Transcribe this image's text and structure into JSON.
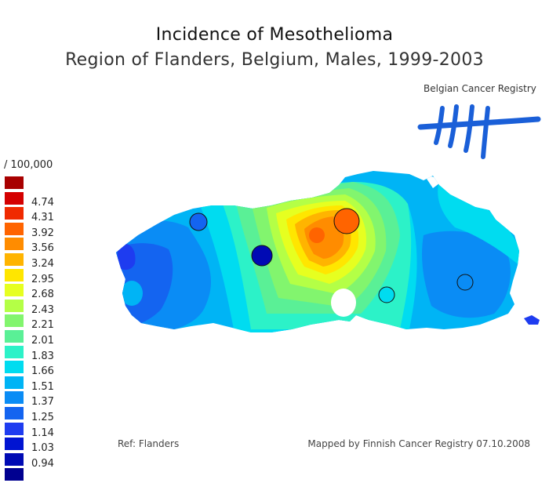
{
  "title": "Incidence of Mesothelioma",
  "subtitle": "Region of Flanders, Belgium, Males, 1999-2003",
  "logo": {
    "text": "Belgian Cancer Registry",
    "color": "#1a5fd8"
  },
  "legend": {
    "unit": "/ 100,000",
    "items": [
      {
        "label": "",
        "color": "#a80000"
      },
      {
        "label": "4.74",
        "color": "#d40000"
      },
      {
        "label": "4.31",
        "color": "#f02a00"
      },
      {
        "label": "3.92",
        "color": "#ff6400"
      },
      {
        "label": "3.56",
        "color": "#ff8c00"
      },
      {
        "label": "3.24",
        "color": "#ffb400"
      },
      {
        "label": "2.95",
        "color": "#ffe600"
      },
      {
        "label": "2.68",
        "color": "#e6ff20"
      },
      {
        "label": "2.43",
        "color": "#b4ff46"
      },
      {
        "label": "2.21",
        "color": "#82f56e"
      },
      {
        "label": "2.01",
        "color": "#5af096"
      },
      {
        "label": "1.83",
        "color": "#2cf2c8"
      },
      {
        "label": "1.66",
        "color": "#00dcf0"
      },
      {
        "label": "1.51",
        "color": "#00b4f5"
      },
      {
        "label": "1.37",
        "color": "#0a8cf5"
      },
      {
        "label": "1.25",
        "color": "#1464f0"
      },
      {
        "label": "1.14",
        "color": "#1e3cf0"
      },
      {
        "label": "1.03",
        "color": "#0014d2"
      },
      {
        "label": "0.94",
        "color": "#000ab4"
      },
      {
        "label": "",
        "color": "#000090"
      }
    ]
  },
  "ref": "Ref: Flanders",
  "credit": "Mapped by Finnish Cancer Registry 07.10.2008"
}
